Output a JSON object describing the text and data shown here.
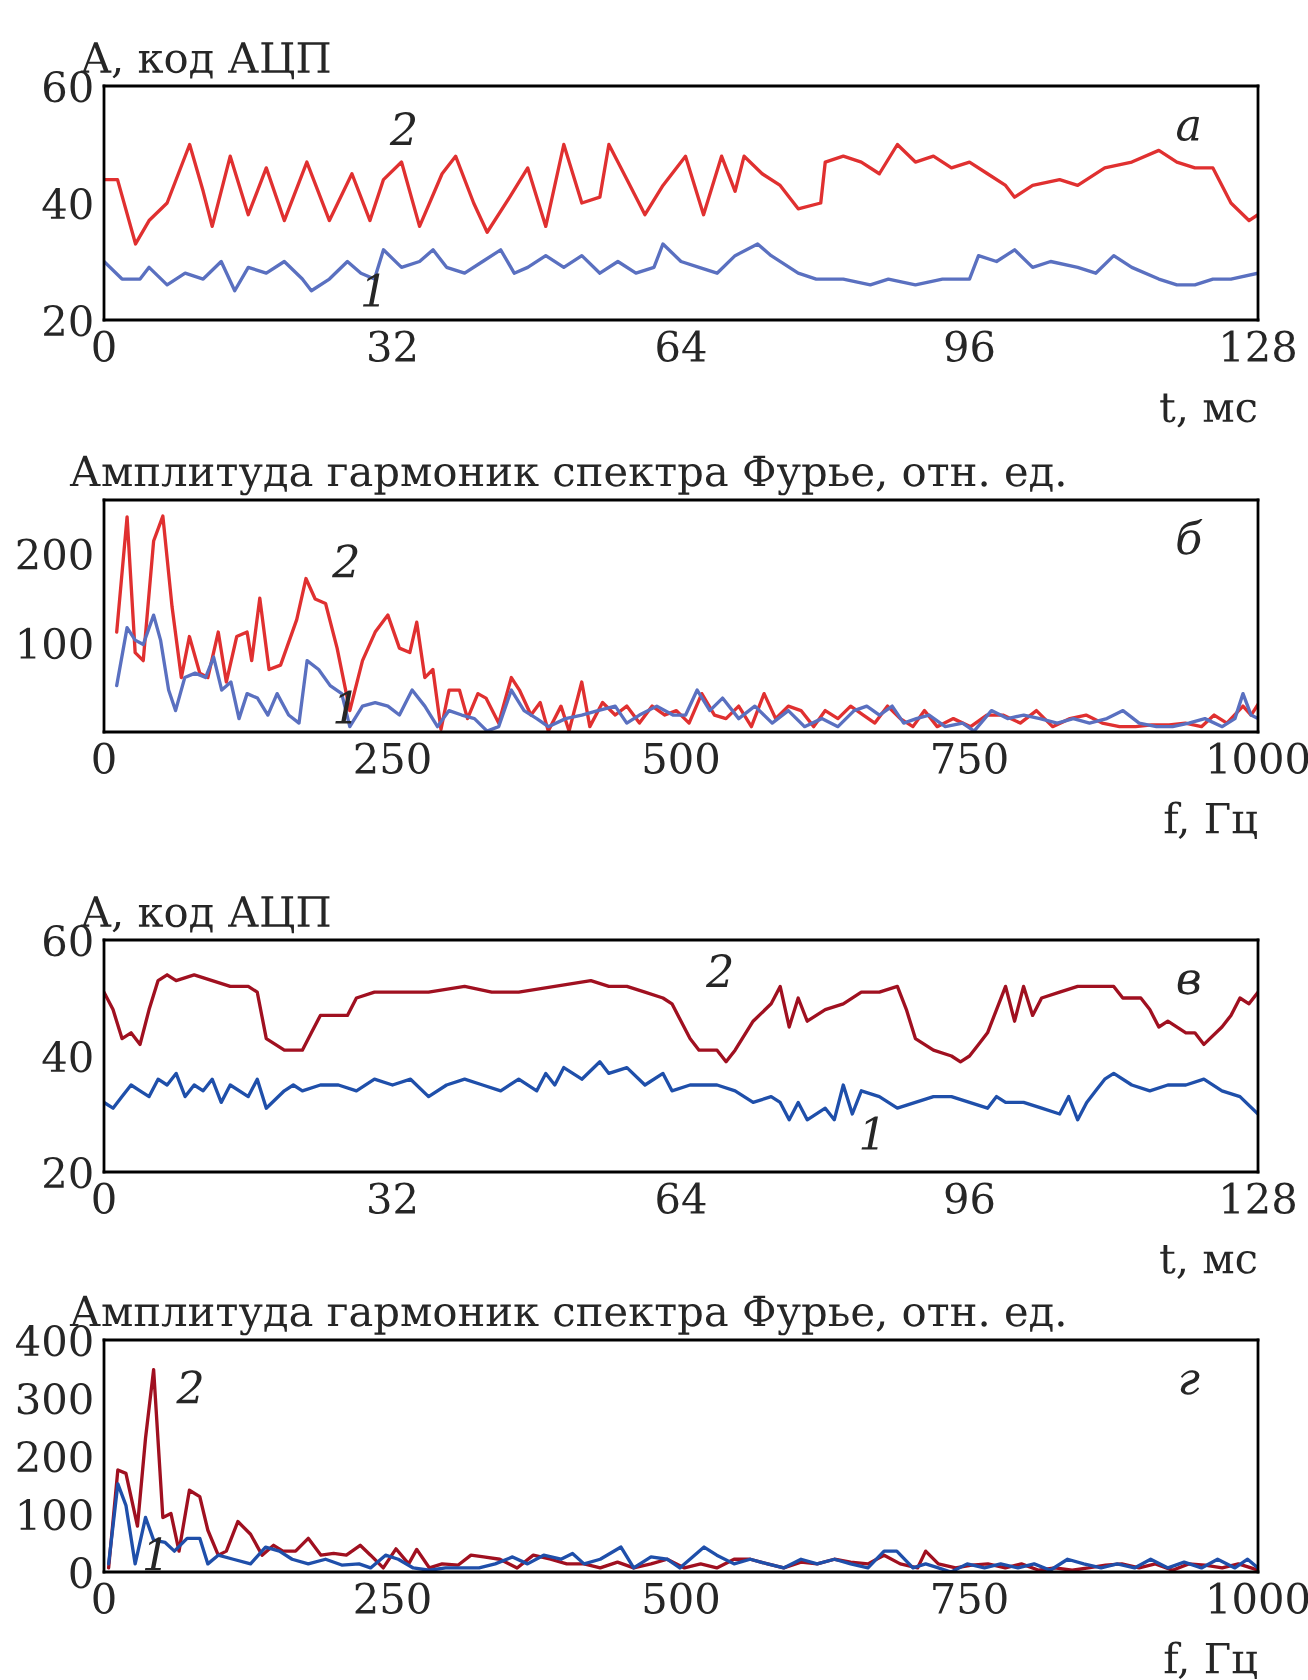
{
  "chart_data": [
    {
      "type": "line",
      "ylabel": "A, код АЦП",
      "xlabel": "t, мс",
      "xlim": [
        0,
        128
      ],
      "xticks": [
        0,
        32,
        64,
        96,
        128
      ],
      "ylim": [
        20,
        60
      ],
      "yticks": [
        20,
        40,
        60
      ],
      "grid": false,
      "legend": false,
      "annotations": [
        "а"
      ],
      "series": [
        {
          "name": "2",
          "color": "#e03030",
          "x": [
            0,
            1.5,
            3.5,
            5,
            7,
            9.5,
            11,
            12,
            14,
            16,
            18,
            20,
            22.5,
            25,
            27.5,
            29.5,
            31,
            33,
            35,
            37.5,
            39,
            41,
            42.5,
            45,
            47,
            49,
            51,
            53,
            55,
            56,
            58,
            60,
            62,
            64.5,
            66.5,
            68.5,
            70,
            71,
            73,
            75,
            77,
            79.5,
            80,
            82,
            84,
            86,
            88,
            90,
            92,
            94,
            96,
            98,
            100,
            101,
            103,
            106,
            108,
            111,
            114,
            117,
            119,
            121,
            123,
            125,
            127,
            128
          ],
          "values": [
            44,
            44,
            33,
            37,
            40,
            50,
            42,
            36,
            48,
            38,
            46,
            37,
            47,
            37,
            45,
            37,
            44,
            47,
            36,
            45,
            48,
            40,
            35,
            41,
            46,
            36,
            50,
            40,
            41,
            50,
            44,
            38,
            43,
            48,
            38,
            48,
            42,
            48,
            45,
            43,
            39,
            40,
            47,
            48,
            47,
            45,
            50,
            47,
            48,
            46,
            47,
            45,
            43,
            41,
            43,
            44,
            43,
            46,
            47,
            49,
            47,
            46,
            46,
            40,
            37,
            38
          ]
        },
        {
          "name": "1",
          "color": "#5a70c0",
          "x": [
            0,
            2,
            4,
            5,
            7,
            9,
            11,
            13,
            14.5,
            16,
            18,
            20,
            22,
            23,
            25,
            27,
            28.5,
            30,
            31,
            33,
            35,
            36.5,
            38,
            40,
            42,
            44,
            45.5,
            47,
            49,
            51,
            53,
            55,
            57,
            59,
            61,
            62,
            64,
            66,
            68,
            70,
            72.5,
            74,
            77,
            79,
            82,
            85,
            87,
            90,
            93,
            96,
            97,
            99,
            101,
            103,
            105,
            108,
            110,
            112,
            114,
            117,
            119,
            121,
            123,
            125,
            128
          ],
          "values": [
            30,
            27,
            27,
            29,
            26,
            28,
            27,
            30,
            25,
            29,
            28,
            30,
            27,
            25,
            27,
            30,
            28,
            27,
            32,
            29,
            30,
            32,
            29,
            28,
            30,
            32,
            28,
            29,
            31,
            29,
            31,
            28,
            30,
            28,
            29,
            33,
            30,
            29,
            28,
            31,
            33,
            31,
            28,
            27,
            27,
            26,
            27,
            26,
            27,
            27,
            31,
            30,
            32,
            29,
            30,
            29,
            28,
            31,
            29,
            27,
            26,
            26,
            27,
            27,
            28
          ]
        }
      ]
    },
    {
      "type": "line",
      "ylabel": "Амплитуда гармоник спектра Фурье, отн. ед.",
      "xlabel": "f, Гц",
      "xlim": [
        0,
        1000
      ],
      "xticks": [
        0,
        250,
        500,
        750,
        1000
      ],
      "ylim": [
        0,
        260
      ],
      "yticks": [
        100,
        200
      ],
      "grid": false,
      "legend": false,
      "annotations": [
        "б"
      ],
      "series": [
        {
          "name": "2",
          "color": "#e03030",
          "x": [
            11,
            20,
            27,
            34,
            43,
            51,
            59,
            67,
            74,
            83,
            90,
            99,
            106,
            115,
            124,
            128,
            135,
            143,
            153,
            167,
            175,
            183,
            192,
            202,
            213,
            224,
            235,
            246,
            256,
            265,
            271,
            278,
            285,
            292,
            299,
            308,
            315,
            324,
            331,
            342,
            353,
            360,
            370,
            378,
            385,
            396,
            403,
            414,
            421,
            432,
            443,
            453,
            464,
            475,
            486,
            496,
            507,
            518,
            529,
            539,
            550,
            561,
            572,
            582,
            593,
            604,
            615,
            625,
            636,
            647,
            658,
            668,
            679,
            690,
            701,
            711,
            722,
            736,
            751,
            765,
            779,
            794,
            808,
            822,
            837,
            851,
            865,
            880,
            894,
            908,
            923,
            937,
            951,
            962,
            973,
            987,
            994,
            1000
          ],
          "values": [
            112,
            241,
            89,
            80,
            214,
            242,
            140,
            61,
            107,
            66,
            61,
            112,
            56,
            107,
            112,
            80,
            150,
            70,
            75,
            126,
            172,
            149,
            144,
            94,
            24,
            80,
            112,
            131,
            94,
            89,
            123,
            61,
            70,
            3,
            47,
            47,
            15,
            43,
            38,
            10,
            61,
            47,
            19,
            33,
            1,
            29,
            1,
            56,
            6,
            33,
            19,
            29,
            10,
            29,
            19,
            24,
            10,
            43,
            19,
            15,
            29,
            6,
            43,
            15,
            29,
            24,
            6,
            24,
            15,
            29,
            19,
            10,
            29,
            15,
            6,
            24,
            6,
            15,
            6,
            19,
            19,
            10,
            24,
            6,
            15,
            19,
            10,
            6,
            6,
            8,
            8,
            10,
            6,
            19,
            10,
            29,
            19,
            31
          ]
        },
        {
          "name": "1",
          "color": "#5a70c0",
          "x": [
            11,
            20,
            27,
            34,
            43,
            49,
            56,
            62,
            70,
            79,
            88,
            95,
            102,
            110,
            117,
            124,
            133,
            142,
            150,
            160,
            169,
            176,
            186,
            196,
            206,
            213,
            224,
            235,
            246,
            256,
            267,
            278,
            289,
            299,
            310,
            321,
            332,
            342,
            353,
            364,
            375,
            385,
            400,
            414,
            428,
            443,
            453,
            464,
            479,
            493,
            504,
            514,
            525,
            536,
            550,
            564,
            579,
            593,
            607,
            622,
            636,
            650,
            661,
            672,
            683,
            693,
            704,
            715,
            729,
            744,
            754,
            769,
            783,
            797,
            811,
            826,
            840,
            854,
            869,
            883,
            897,
            912,
            926,
            940,
            954,
            969,
            980,
            987,
            994,
            1000
          ],
          "values": [
            52,
            117,
            103,
            98,
            131,
            103,
            47,
            24,
            61,
            66,
            61,
            84,
            47,
            56,
            15,
            43,
            38,
            19,
            43,
            19,
            10,
            80,
            70,
            52,
            43,
            6,
            29,
            33,
            29,
            19,
            47,
            29,
            6,
            24,
            19,
            15,
            1,
            6,
            47,
            24,
            15,
            6,
            15,
            19,
            24,
            29,
            10,
            19,
            29,
            19,
            19,
            47,
            24,
            38,
            15,
            29,
            10,
            24,
            6,
            15,
            6,
            24,
            29,
            19,
            29,
            10,
            15,
            19,
            6,
            10,
            1,
            24,
            15,
            19,
            15,
            10,
            15,
            10,
            15,
            24,
            10,
            6,
            6,
            10,
            15,
            6,
            15,
            43,
            19,
            15
          ]
        }
      ]
    },
    {
      "type": "line",
      "ylabel": "A, код АЦП",
      "xlabel": "t, мс",
      "xlim": [
        0,
        128
      ],
      "xticks": [
        0,
        32,
        64,
        96,
        128
      ],
      "ylim": [
        20,
        60
      ],
      "yticks": [
        20,
        40,
        60
      ],
      "grid": false,
      "legend": false,
      "annotations": [
        "в"
      ],
      "series": [
        {
          "name": "2",
          "color": "#a01020",
          "x": [
            0,
            1,
            2,
            3,
            4,
            5,
            6,
            7,
            8,
            10,
            12,
            14,
            16,
            17,
            18,
            19,
            20,
            22,
            23,
            24,
            27,
            28,
            30,
            33,
            36,
            40,
            43,
            46,
            50,
            54,
            56,
            58,
            60,
            62,
            63,
            65,
            66,
            68,
            69,
            70,
            72,
            74,
            75,
            76,
            77,
            78,
            80,
            82,
            84,
            86,
            88,
            89,
            90,
            92,
            94,
            95,
            96,
            97,
            98,
            99,
            100,
            101,
            102,
            103,
            104,
            106,
            108,
            110,
            112,
            113,
            115,
            116,
            117,
            118,
            120,
            121,
            122,
            124,
            125,
            126,
            127,
            128
          ],
          "values": [
            51,
            48,
            43,
            44,
            42,
            48,
            53,
            54,
            53,
            54,
            53,
            52,
            52,
            51,
            43,
            42,
            41,
            41,
            44,
            47,
            47,
            50,
            51,
            51,
            51,
            52,
            51,
            51,
            52,
            53,
            52,
            52,
            51,
            50,
            49,
            43,
            41,
            41,
            39,
            41,
            46,
            49,
            52,
            45,
            50,
            46,
            48,
            49,
            51,
            51,
            52,
            48,
            43,
            41,
            40,
            39,
            40,
            42,
            44,
            48,
            52,
            46,
            52,
            47,
            50,
            51,
            52,
            52,
            52,
            50,
            50,
            48,
            45,
            46,
            44,
            44,
            42,
            45,
            47,
            50,
            49,
            51
          ]
        },
        {
          "name": "1",
          "color": "#1f4faa",
          "x": [
            0,
            1,
            2,
            3,
            4,
            5,
            6,
            7,
            8,
            9,
            10,
            11,
            12,
            13,
            14,
            16,
            17,
            18,
            20,
            21,
            22,
            24,
            26,
            28,
            30,
            32,
            34,
            36,
            38,
            40,
            42,
            44,
            46,
            48,
            49,
            50,
            51,
            53,
            55,
            56,
            58,
            60,
            62,
            63,
            65,
            68,
            70,
            72,
            74,
            75,
            76,
            77,
            78,
            80,
            81,
            82,
            83,
            84,
            86,
            88,
            90,
            92,
            94,
            96,
            98,
            99,
            100,
            102,
            104,
            106,
            107,
            108,
            109,
            110,
            111,
            112,
            114,
            116,
            118,
            120,
            122,
            124,
            126,
            128
          ],
          "values": [
            32,
            31,
            33,
            35,
            34,
            33,
            36,
            35,
            37,
            33,
            35,
            34,
            36,
            32,
            35,
            33,
            36,
            31,
            34,
            35,
            34,
            35,
            35,
            34,
            36,
            35,
            36,
            33,
            35,
            36,
            35,
            34,
            36,
            34,
            37,
            35,
            38,
            36,
            39,
            37,
            38,
            35,
            37,
            34,
            35,
            35,
            34,
            32,
            33,
            32,
            29,
            32,
            29,
            31,
            29,
            35,
            30,
            34,
            33,
            31,
            32,
            33,
            33,
            32,
            31,
            33,
            32,
            32,
            31,
            30,
            33,
            29,
            32,
            34,
            36,
            37,
            35,
            34,
            35,
            35,
            36,
            34,
            33,
            30
          ]
        }
      ]
    },
    {
      "type": "line",
      "ylabel": "Амплитуда гармоник спектра Фурье, отн. ед.",
      "xlabel": "f, Гц",
      "xlim": [
        0,
        1000
      ],
      "xticks": [
        0,
        250,
        500,
        750,
        1000
      ],
      "ylim": [
        0,
        400
      ],
      "yticks": [
        0,
        100,
        200,
        300,
        400
      ],
      "grid": false,
      "legend": false,
      "annotations": [
        "г"
      ],
      "series": [
        {
          "name": "2",
          "color": "#a01020",
          "x": [
            4,
            12,
            19,
            29,
            36,
            43,
            51,
            58,
            65,
            74,
            83,
            90,
            99,
            106,
            116,
            127,
            137,
            147,
            155,
            166,
            177,
            188,
            199,
            210,
            222,
            231,
            242,
            253,
            264,
            271,
            282,
            293,
            307,
            318,
            329,
            343,
            358,
            372,
            387,
            401,
            416,
            430,
            445,
            459,
            474,
            488,
            503,
            517,
            531,
            546,
            560,
            575,
            589,
            604,
            618,
            633,
            647,
            662,
            676,
            690,
            705,
            712,
            723,
            738,
            752,
            766,
            781,
            795,
            810,
            824,
            839,
            853,
            868,
            882,
            897,
            911,
            926,
            940,
            954,
            969,
            983,
            994,
            1000
          ],
          "values": [
            7,
            176,
            170,
            79,
            231,
            349,
            94,
            101,
            36,
            141,
            130,
            72,
            29,
            36,
            87,
            65,
            29,
            46,
            36,
            36,
            58,
            29,
            32,
            29,
            46,
            29,
            7,
            40,
            14,
            39,
            7,
            14,
            12,
            29,
            26,
            22,
            7,
            29,
            22,
            14,
            14,
            7,
            17,
            7,
            14,
            22,
            7,
            14,
            7,
            22,
            22,
            14,
            7,
            17,
            14,
            22,
            17,
            14,
            29,
            14,
            7,
            36,
            14,
            7,
            12,
            14,
            7,
            14,
            3,
            7,
            3,
            7,
            12,
            14,
            7,
            14,
            3,
            14,
            12,
            7,
            14,
            7,
            3
          ]
        },
        {
          "name": "1",
          "color": "#1f4faa",
          "x": [
            4,
            12,
            19,
            27,
            36,
            43,
            53,
            61,
            72,
            83,
            90,
            99,
            112,
            127,
            140,
            152,
            163,
            177,
            192,
            206,
            221,
            231,
            244,
            255,
            268,
            282,
            296,
            311,
            325,
            339,
            354,
            367,
            381,
            396,
            406,
            416,
            430,
            448,
            459,
            474,
            488,
            499,
            510,
            520,
            531,
            546,
            560,
            575,
            589,
            604,
            618,
            633,
            647,
            662,
            676,
            687,
            701,
            712,
            723,
            734,
            748,
            763,
            777,
            792,
            806,
            820,
            835,
            849,
            864,
            878,
            893,
            907,
            922,
            936,
            951,
            965,
            980,
            991,
            1000
          ],
          "values": [
            14,
            152,
            115,
            14,
            94,
            55,
            51,
            36,
            58,
            58,
            14,
            29,
            22,
            14,
            43,
            36,
            22,
            14,
            22,
            12,
            14,
            7,
            29,
            22,
            7,
            3,
            7,
            7,
            7,
            14,
            26,
            14,
            29,
            22,
            32,
            14,
            22,
            43,
            7,
            26,
            22,
            7,
            26,
            43,
            29,
            14,
            22,
            14,
            7,
            22,
            14,
            22,
            14,
            7,
            36,
            36,
            7,
            14,
            7,
            0,
            14,
            7,
            14,
            7,
            14,
            3,
            22,
            14,
            7,
            14,
            7,
            22,
            7,
            17,
            7,
            22,
            7,
            22,
            7
          ]
        }
      ]
    }
  ]
}
